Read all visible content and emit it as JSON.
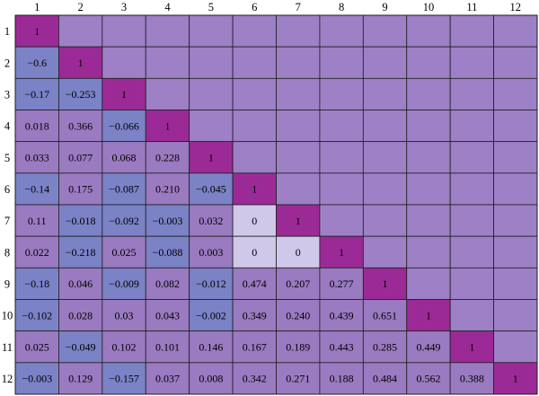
{
  "chart_data": {
    "type": "heatmap",
    "title": "",
    "xlabel": "",
    "ylabel": "",
    "legend": "none",
    "grid": true,
    "columns": [
      "1",
      "2",
      "3",
      "4",
      "5",
      "6",
      "7",
      "8",
      "9",
      "10",
      "11",
      "12"
    ],
    "rows": [
      "1",
      "2",
      "3",
      "4",
      "5",
      "6",
      "7",
      "8",
      "9",
      "10",
      "11",
      "12"
    ],
    "cells": [
      [
        "1"
      ],
      [
        "−0.6",
        "1"
      ],
      [
        "−0.17",
        "−0.253",
        "1"
      ],
      [
        "0.018",
        "0.366",
        "−0.066",
        "1"
      ],
      [
        "0.033",
        "0.077",
        "0.068",
        "0.228",
        "1"
      ],
      [
        "−0.14",
        "0.175",
        "−0.087",
        "0.210",
        "−0.045",
        "1"
      ],
      [
        "0.11",
        "−0.018",
        "−0.092",
        "−0.003",
        "0.032",
        "0",
        "1"
      ],
      [
        "0.022",
        "−0.218",
        "0.025",
        "−0.088",
        "0.003",
        "0",
        "0",
        "1"
      ],
      [
        "−0.18",
        "0.046",
        "−0.009",
        "0.082",
        "−0.012",
        "0.474",
        "0.207",
        "0.277",
        "1"
      ],
      [
        "−0.102",
        "0.028",
        "0.03",
        "0.043",
        "−0.002",
        "0.349",
        "0.240",
        "0.439",
        "0.651",
        "1"
      ],
      [
        "0.025",
        "−0.049",
        "0.102",
        "0.101",
        "0.146",
        "0.167",
        "0.189",
        "0.443",
        "0.285",
        "0.449",
        "1"
      ],
      [
        "−0.003",
        "0.129",
        "−0.157",
        "0.037",
        "0.008",
        "0.342",
        "0.271",
        "0.188",
        "0.484",
        "0.562",
        "0.388",
        "1"
      ]
    ],
    "colors": {
      "diagonal": "#9b2a96",
      "negative": "#7b82c6",
      "positive": "#9a7ac0",
      "zero": "#cfc8e8",
      "empty": "#9d80c6",
      "grid": "#1e1e1e"
    }
  }
}
